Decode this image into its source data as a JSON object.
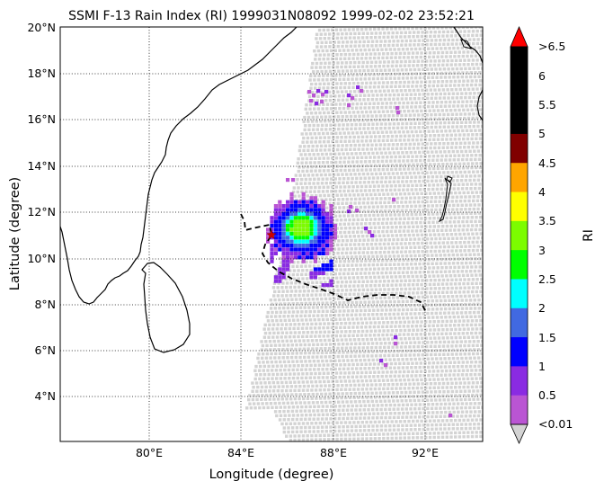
{
  "title": "SSMI F-13 Rain Index (RI) 1999031N08092 1999-02-02 23:52:21",
  "xlabel": "Longitude (degree)",
  "ylabel": "Latitude (degree)",
  "lon_ticks": [
    "80°E",
    "84°E",
    "88°E",
    "92°E"
  ],
  "lat_ticks": [
    "4°N",
    "6°N",
    "8°N",
    "10°N",
    "12°N",
    "14°N",
    "16°N",
    "18°N",
    "20°N"
  ],
  "colorbar": {
    "label": "RI",
    "tick_labels": [
      ">6.5",
      "6",
      "5.5",
      "5",
      "4.5",
      "4",
      "3.5",
      "3",
      "2.5",
      "2",
      "1.5",
      "1",
      "0.5",
      "<0.01"
    ],
    "colors": [
      "#ba55d3",
      "#8a2be2",
      "#0000ff",
      "#4169e1",
      "#00ffff",
      "#00ff00",
      "#7cfc00",
      "#ffff00",
      "#ffa500",
      "#800000",
      "#000000",
      "#000000",
      "#000000"
    ],
    "over_color": "#ff0000",
    "under_color": "#d3d3d3"
  },
  "map": {
    "lon_range": [
      76.0,
      94.5
    ],
    "lat_range": [
      2.0,
      20.0
    ],
    "gridlines": "dotted",
    "swath_color": "#d3d3d3",
    "storm_center_marker": "red star",
    "track_style": "dashed black"
  }
}
